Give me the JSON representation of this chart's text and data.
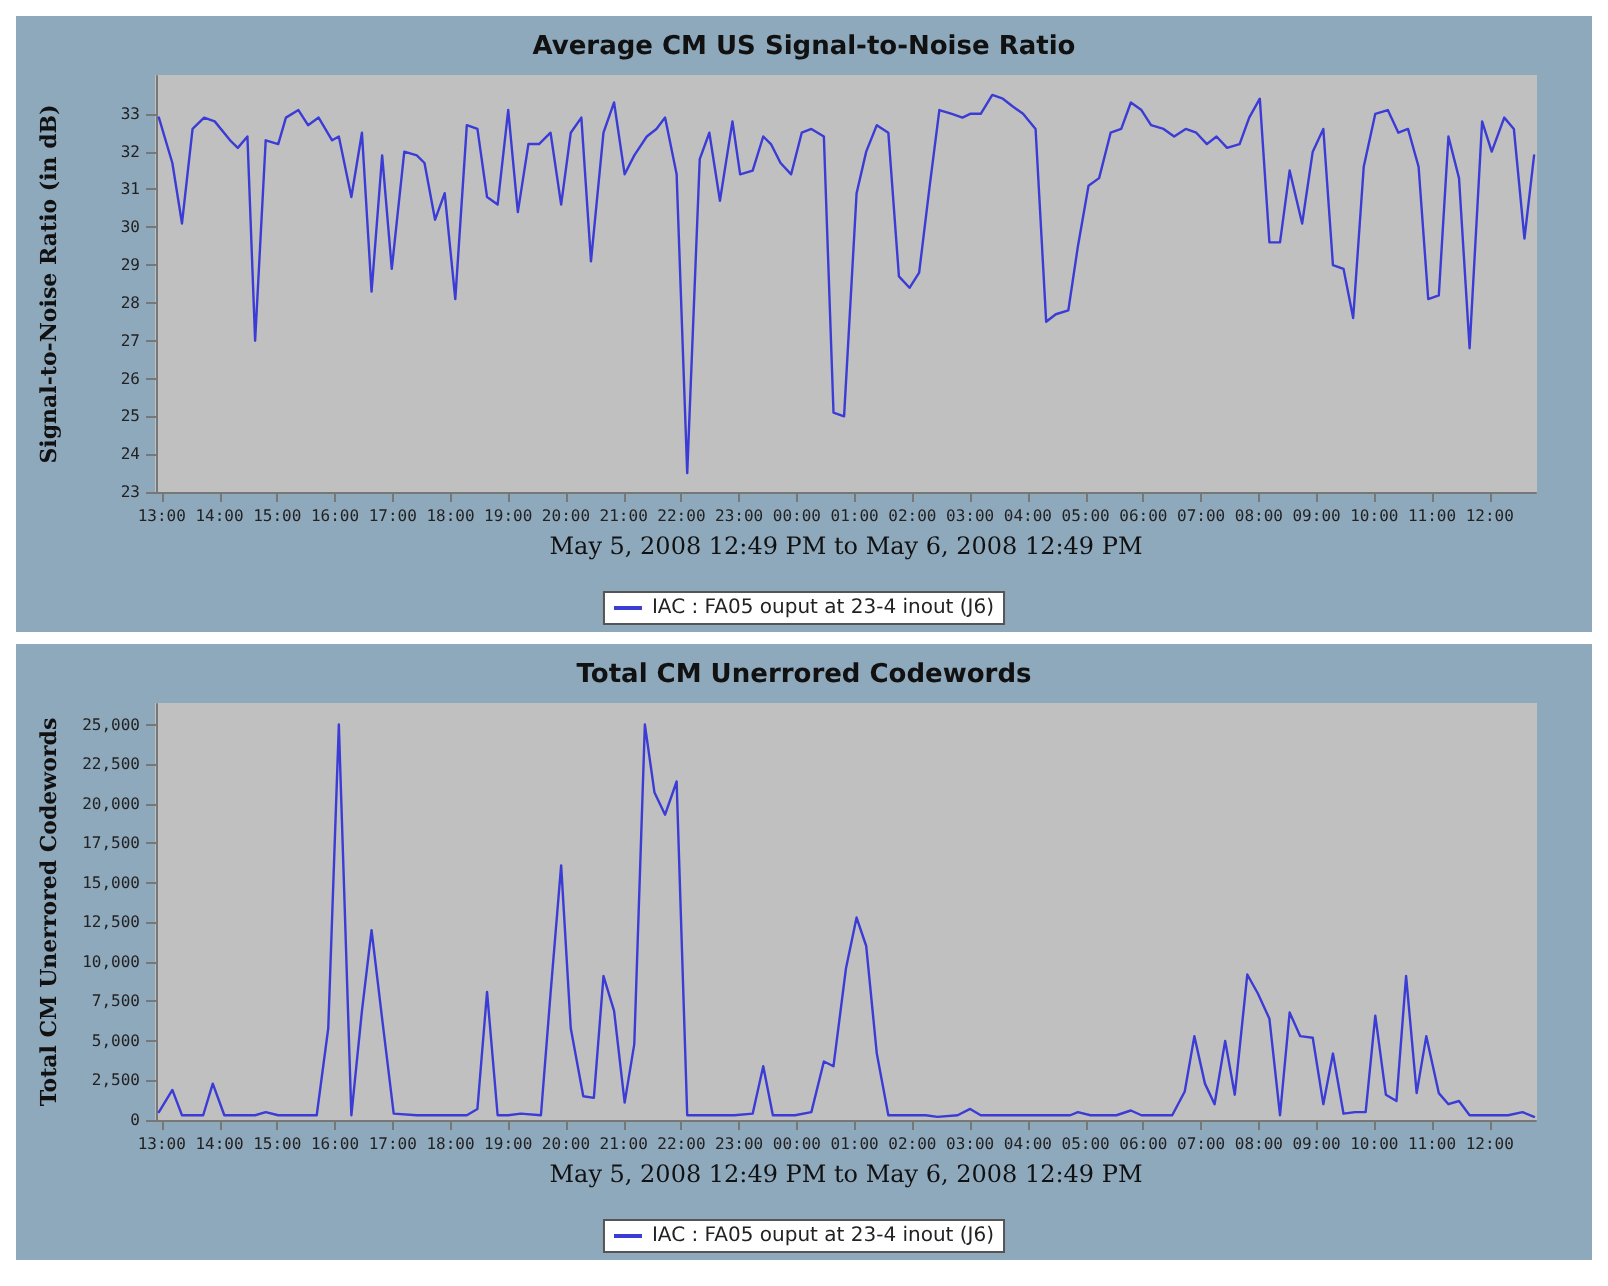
{
  "chart_data": [
    {
      "type": "line",
      "title": "Average CM US Signal-to-Noise Ratio",
      "xlabel": "May 5, 2008 12:49 PM to May 6, 2008 12:49 PM",
      "ylabel": "Signal-to-Noise Ratio (in dB)",
      "legend": "bottom",
      "grid": false,
      "marker": "none",
      "line_style": "solid",
      "xlim": [
        "2008-05-05T12:54",
        "2008-05-06T12:48"
      ],
      "xticks": [
        {
          "value": "2008-05-05T13:00",
          "label": "13:00"
        },
        {
          "value": "2008-05-05T14:00",
          "label": "14:00"
        },
        {
          "value": "2008-05-05T15:00",
          "label": "15:00"
        },
        {
          "value": "2008-05-05T16:00",
          "label": "16:00"
        },
        {
          "value": "2008-05-05T17:00",
          "label": "17:00"
        },
        {
          "value": "2008-05-05T18:00",
          "label": "18:00"
        },
        {
          "value": "2008-05-05T19:00",
          "label": "19:00"
        },
        {
          "value": "2008-05-05T20:00",
          "label": "20:00"
        },
        {
          "value": "2008-05-05T21:00",
          "label": "21:00"
        },
        {
          "value": "2008-05-05T22:00",
          "label": "22:00"
        },
        {
          "value": "2008-05-05T23:00",
          "label": "23:00"
        },
        {
          "value": "2008-05-06T00:00",
          "label": "00:00"
        },
        {
          "value": "2008-05-06T01:00",
          "label": "01:00"
        },
        {
          "value": "2008-05-06T02:00",
          "label": "02:00"
        },
        {
          "value": "2008-05-06T03:00",
          "label": "03:00"
        },
        {
          "value": "2008-05-06T04:00",
          "label": "04:00"
        },
        {
          "value": "2008-05-06T05:00",
          "label": "05:00"
        },
        {
          "value": "2008-05-06T06:00",
          "label": "06:00"
        },
        {
          "value": "2008-05-06T07:00",
          "label": "07:00"
        },
        {
          "value": "2008-05-06T08:00",
          "label": "08:00"
        },
        {
          "value": "2008-05-06T09:00",
          "label": "09:00"
        },
        {
          "value": "2008-05-06T10:00",
          "label": "10:00"
        },
        {
          "value": "2008-05-06T11:00",
          "label": "11:00"
        },
        {
          "value": "2008-05-06T12:00",
          "label": "12:00"
        }
      ],
      "ylim": [
        23,
        34
      ],
      "yticks": [
        23,
        24,
        25,
        26,
        27,
        28,
        29,
        30,
        31,
        32,
        33
      ],
      "x": [
        "2008-05-05T12:57",
        "2008-05-05T13:11",
        "2008-05-05T13:21",
        "2008-05-05T13:32",
        "2008-05-05T13:44",
        "2008-05-05T13:55",
        "2008-05-05T14:11",
        "2008-05-05T14:19",
        "2008-05-05T14:29",
        "2008-05-05T14:37",
        "2008-05-05T14:48",
        "2008-05-05T15:01",
        "2008-05-05T15:09",
        "2008-05-05T15:22",
        "2008-05-05T15:32",
        "2008-05-05T15:43",
        "2008-05-05T15:57",
        "2008-05-05T16:04",
        "2008-05-05T16:17",
        "2008-05-05T16:28",
        "2008-05-05T16:38",
        "2008-05-05T16:49",
        "2008-05-05T16:59",
        "2008-05-05T17:12",
        "2008-05-05T17:25",
        "2008-05-05T17:33",
        "2008-05-05T17:44",
        "2008-05-05T17:54",
        "2008-05-05T18:05",
        "2008-05-05T18:17",
        "2008-05-05T18:28",
        "2008-05-05T18:38",
        "2008-05-05T18:49",
        "2008-05-05T19:00",
        "2008-05-05T19:10",
        "2008-05-05T19:21",
        "2008-05-05T19:32",
        "2008-05-05T19:44",
        "2008-05-05T19:55",
        "2008-05-05T20:05",
        "2008-05-05T20:16",
        "2008-05-05T20:26",
        "2008-05-05T20:39",
        "2008-05-05T20:50",
        "2008-05-05T21:01",
        "2008-05-05T21:11",
        "2008-05-05T21:24",
        "2008-05-05T21:34",
        "2008-05-05T21:43",
        "2008-05-05T21:55",
        "2008-05-05T22:06",
        "2008-05-05T22:19",
        "2008-05-05T22:29",
        "2008-05-05T22:40",
        "2008-05-05T22:53",
        "2008-05-05T23:01",
        "2008-05-05T23:14",
        "2008-05-05T23:25",
        "2008-05-05T23:33",
        "2008-05-05T23:43",
        "2008-05-05T23:54",
        "2008-05-06T00:05",
        "2008-05-06T00:15",
        "2008-05-06T00:28",
        "2008-05-06T00:38",
        "2008-05-06T00:49",
        "2008-05-06T01:02",
        "2008-05-06T01:12",
        "2008-05-06T01:23",
        "2008-05-06T01:35",
        "2008-05-06T01:46",
        "2008-05-06T01:57",
        "2008-05-06T02:07",
        "2008-05-06T02:18",
        "2008-05-06T02:28",
        "2008-05-06T02:41",
        "2008-05-06T02:52",
        "2008-05-06T03:00",
        "2008-05-06T03:11",
        "2008-05-06T03:23",
        "2008-05-06T03:34",
        "2008-05-06T03:44",
        "2008-05-06T03:55",
        "2008-05-06T04:08",
        "2008-05-06T04:19",
        "2008-05-06T04:29",
        "2008-05-06T04:42",
        "2008-05-06T04:52",
        "2008-05-06T05:03",
        "2008-05-06T05:14",
        "2008-05-06T05:26",
        "2008-05-06T05:37",
        "2008-05-06T05:47",
        "2008-05-06T05:58",
        "2008-05-06T06:08",
        "2008-05-06T06:21",
        "2008-05-06T06:32",
        "2008-05-06T06:44",
        "2008-05-06T06:55",
        "2008-05-06T07:06",
        "2008-05-06T07:16",
        "2008-05-06T07:27",
        "2008-05-06T07:40",
        "2008-05-06T07:50",
        "2008-05-06T08:01",
        "2008-05-06T08:11",
        "2008-05-06T08:22",
        "2008-05-06T08:32",
        "2008-05-06T08:45",
        "2008-05-06T08:56",
        "2008-05-06T09:07",
        "2008-05-06T09:17",
        "2008-05-06T09:28",
        "2008-05-06T09:38",
        "2008-05-06T09:49",
        "2008-05-06T10:01",
        "2008-05-06T10:14",
        "2008-05-06T10:25",
        "2008-05-06T10:35",
        "2008-05-06T10:46",
        "2008-05-06T10:56",
        "2008-05-06T11:07",
        "2008-05-06T11:17",
        "2008-05-06T11:28",
        "2008-05-06T11:39",
        "2008-05-06T11:52",
        "2008-05-06T12:02",
        "2008-05-06T12:15",
        "2008-05-06T12:25",
        "2008-05-06T12:36",
        "2008-05-06T12:46"
      ],
      "series": [
        {
          "name": "IAC : FA05 ouput at 23-4 inout (J6)",
          "color": "#3b3bd6",
          "values": [
            32.9,
            31.7,
            30.1,
            32.6,
            32.9,
            32.8,
            32.3,
            32.1,
            32.4,
            27.0,
            32.3,
            32.2,
            32.9,
            33.1,
            32.7,
            32.9,
            32.3,
            32.4,
            30.8,
            32.5,
            28.3,
            31.9,
            28.9,
            32.0,
            31.9,
            31.7,
            30.2,
            30.9,
            28.1,
            32.7,
            32.6,
            30.8,
            30.6,
            33.1,
            30.4,
            32.2,
            32.2,
            32.5,
            30.6,
            32.5,
            32.9,
            29.1,
            32.5,
            33.3,
            31.4,
            31.9,
            32.4,
            32.6,
            32.9,
            31.4,
            23.5,
            31.8,
            32.5,
            30.7,
            32.8,
            31.4,
            31.5,
            32.4,
            32.2,
            31.7,
            31.4,
            32.5,
            32.6,
            32.4,
            25.1,
            25.0,
            30.9,
            32.0,
            32.7,
            32.5,
            28.7,
            28.4,
            28.8,
            31.1,
            33.1,
            33.0,
            32.9,
            33.0,
            33.0,
            33.5,
            33.4,
            33.2,
            33.0,
            32.6,
            27.5,
            27.7,
            27.8,
            29.5,
            31.1,
            31.3,
            32.5,
            32.6,
            33.3,
            33.1,
            32.7,
            32.6,
            32.4,
            32.6,
            32.5,
            32.2,
            32.4,
            32.1,
            32.2,
            32.9,
            33.4,
            29.6,
            29.6,
            31.5,
            30.1,
            32.0,
            32.6,
            29.0,
            28.9,
            27.6,
            31.6,
            33.0,
            33.1,
            32.5,
            32.6,
            31.6,
            28.1,
            28.2,
            32.4,
            31.3,
            26.8,
            32.8,
            32.0,
            32.9,
            32.6,
            29.7,
            31.9
          ]
        }
      ]
    },
    {
      "type": "line",
      "title": "Total CM Unerrored Codewords",
      "xlabel": "May 5, 2008 12:49 PM to May 6, 2008 12:49 PM",
      "ylabel": "Total CM Unerrored Codewords",
      "legend": "bottom",
      "grid": false,
      "marker": "none",
      "line_style": "solid",
      "xlim": [
        "2008-05-05T12:54",
        "2008-05-06T12:48"
      ],
      "xticks": [
        {
          "value": "2008-05-05T13:00",
          "label": "13:00"
        },
        {
          "value": "2008-05-05T14:00",
          "label": "14:00"
        },
        {
          "value": "2008-05-05T15:00",
          "label": "15:00"
        },
        {
          "value": "2008-05-05T16:00",
          "label": "16:00"
        },
        {
          "value": "2008-05-05T17:00",
          "label": "17:00"
        },
        {
          "value": "2008-05-05T18:00",
          "label": "18:00"
        },
        {
          "value": "2008-05-05T19:00",
          "label": "19:00"
        },
        {
          "value": "2008-05-05T20:00",
          "label": "20:00"
        },
        {
          "value": "2008-05-05T21:00",
          "label": "21:00"
        },
        {
          "value": "2008-05-05T22:00",
          "label": "22:00"
        },
        {
          "value": "2008-05-05T23:00",
          "label": "23:00"
        },
        {
          "value": "2008-05-06T00:00",
          "label": "00:00"
        },
        {
          "value": "2008-05-06T01:00",
          "label": "01:00"
        },
        {
          "value": "2008-05-06T02:00",
          "label": "02:00"
        },
        {
          "value": "2008-05-06T03:00",
          "label": "03:00"
        },
        {
          "value": "2008-05-06T04:00",
          "label": "04:00"
        },
        {
          "value": "2008-05-06T05:00",
          "label": "05:00"
        },
        {
          "value": "2008-05-06T06:00",
          "label": "06:00"
        },
        {
          "value": "2008-05-06T07:00",
          "label": "07:00"
        },
        {
          "value": "2008-05-06T08:00",
          "label": "08:00"
        },
        {
          "value": "2008-05-06T09:00",
          "label": "09:00"
        },
        {
          "value": "2008-05-06T10:00",
          "label": "10:00"
        },
        {
          "value": "2008-05-06T11:00",
          "label": "11:00"
        },
        {
          "value": "2008-05-06T12:00",
          "label": "12:00"
        }
      ],
      "ylim": [
        0,
        26300
      ],
      "yticks": [
        0,
        {
          "value": 2500,
          "label": "2,500"
        },
        {
          "value": 5000,
          "label": "5,000"
        },
        {
          "value": 7500,
          "label": "7,500"
        },
        {
          "value": 10000,
          "label": "10,000"
        },
        {
          "value": 12500,
          "label": "12,500"
        },
        {
          "value": 15000,
          "label": "15,000"
        },
        {
          "value": 17500,
          "label": "17,500"
        },
        {
          "value": 20000,
          "label": "20,000"
        },
        {
          "value": 22500,
          "label": "22,500"
        },
        {
          "value": 25000,
          "label": "25,000"
        }
      ],
      "x": [
        "2008-05-05T12:57",
        "2008-05-05T13:11",
        "2008-05-05T13:21",
        "2008-05-05T13:32",
        "2008-05-05T13:43",
        "2008-05-05T13:53",
        "2008-05-05T14:05",
        "2008-05-05T14:19",
        "2008-05-05T14:37",
        "2008-05-05T14:48",
        "2008-05-05T15:01",
        "2008-05-05T15:20",
        "2008-05-05T15:41",
        "2008-05-05T15:53",
        "2008-05-05T16:04",
        "2008-05-05T16:17",
        "2008-05-05T16:28",
        "2008-05-05T16:38",
        "2008-05-05T16:49",
        "2008-05-05T17:01",
        "2008-05-05T17:25",
        "2008-05-05T17:46",
        "2008-05-05T18:05",
        "2008-05-05T18:17",
        "2008-05-05T18:28",
        "2008-05-05T18:38",
        "2008-05-05T18:49",
        "2008-05-05T19:00",
        "2008-05-05T19:13",
        "2008-05-05T19:34",
        "2008-05-05T19:44",
        "2008-05-05T19:55",
        "2008-05-05T20:05",
        "2008-05-05T20:18",
        "2008-05-05T20:29",
        "2008-05-05T20:39",
        "2008-05-05T20:50",
        "2008-05-05T21:01",
        "2008-05-05T21:11",
        "2008-05-05T21:22",
        "2008-05-05T21:32",
        "2008-05-05T21:43",
        "2008-05-05T21:55",
        "2008-05-05T22:06",
        "2008-05-05T22:19",
        "2008-05-05T22:34",
        "2008-05-05T22:55",
        "2008-05-05T23:14",
        "2008-05-05T23:25",
        "2008-05-05T23:35",
        "2008-05-05T23:58",
        "2008-05-06T00:15",
        "2008-05-06T00:28",
        "2008-05-06T00:38",
        "2008-05-06T00:51",
        "2008-05-06T01:02",
        "2008-05-06T01:12",
        "2008-05-06T01:23",
        "2008-05-06T01:35",
        "2008-05-06T01:55",
        "2008-05-06T02:14",
        "2008-05-06T02:26",
        "2008-05-06T02:47",
        "2008-05-06T03:00",
        "2008-05-06T03:11",
        "2008-05-06T03:40",
        "2008-05-06T04:12",
        "2008-05-06T04:44",
        "2008-05-06T04:52",
        "2008-05-06T05:05",
        "2008-05-06T05:32",
        "2008-05-06T05:47",
        "2008-05-06T05:58",
        "2008-05-06T06:30",
        "2008-05-06T06:43",
        "2008-05-06T06:53",
        "2008-05-06T07:04",
        "2008-05-06T07:14",
        "2008-05-06T07:25",
        "2008-05-06T07:35",
        "2008-05-06T07:48",
        "2008-05-06T07:59",
        "2008-05-06T08:11",
        "2008-05-06T08:22",
        "2008-05-06T08:32",
        "2008-05-06T08:43",
        "2008-05-06T08:56",
        "2008-05-06T09:07",
        "2008-05-06T09:17",
        "2008-05-06T09:28",
        "2008-05-06T09:40",
        "2008-05-06T09:51",
        "2008-05-06T10:01",
        "2008-05-06T10:12",
        "2008-05-06T10:23",
        "2008-05-06T10:33",
        "2008-05-06T10:44",
        "2008-05-06T10:54",
        "2008-05-06T11:07",
        "2008-05-06T11:17",
        "2008-05-06T11:28",
        "2008-05-06T11:39",
        "2008-05-06T11:52",
        "2008-05-06T12:19",
        "2008-05-06T12:34",
        "2008-05-06T12:46"
      ],
      "series": [
        {
          "name": "IAC : FA05 ouput at 23-4 inout (J6)",
          "color": "#3b3bd6",
          "values": [
            500,
            1900,
            300,
            300,
            300,
            2300,
            300,
            300,
            300,
            500,
            300,
            300,
            300,
            5800,
            25000,
            300,
            6900,
            12000,
            6400,
            400,
            300,
            300,
            300,
            300,
            700,
            8100,
            300,
            300,
            400,
            300,
            8000,
            16100,
            5800,
            1500,
            1400,
            9100,
            6900,
            1100,
            4800,
            25000,
            20700,
            19300,
            21400,
            300,
            300,
            300,
            300,
            400,
            3400,
            300,
            300,
            500,
            3700,
            3400,
            9600,
            12800,
            11000,
            4200,
            300,
            300,
            300,
            200,
            300,
            700,
            300,
            300,
            300,
            300,
            500,
            300,
            300,
            600,
            300,
            300,
            1800,
            5300,
            2300,
            1000,
            5000,
            1600,
            9200,
            8000,
            6400,
            300,
            6800,
            5300,
            5200,
            1000,
            4200,
            400,
            500,
            500,
            6600,
            1600,
            1200,
            9100,
            1700,
            5300,
            1700,
            1000,
            1200,
            300,
            300,
            300,
            500,
            200
          ]
        }
      ]
    }
  ]
}
